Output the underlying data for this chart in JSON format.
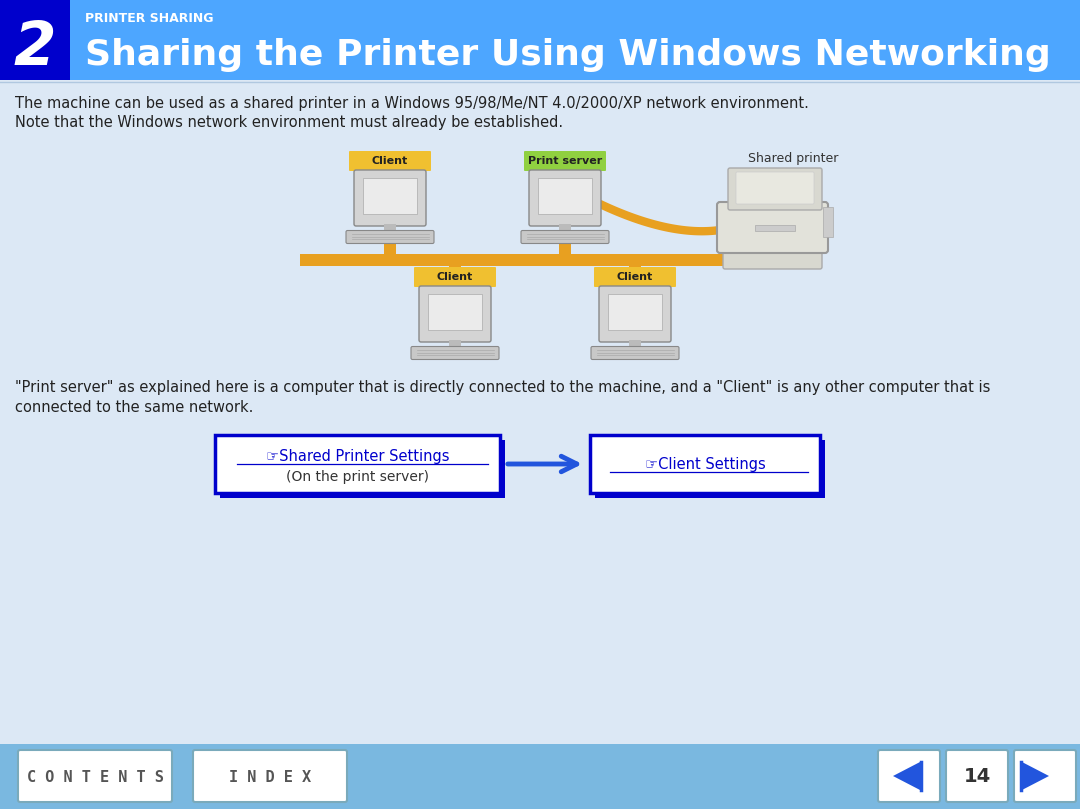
{
  "title_number": "2",
  "title_subtitle": "PRINTER SHARING",
  "title_main": "Sharing the Printer Using Windows Networking",
  "header_bg": "#4da6ff",
  "header_number_bg": "#0000cc",
  "body_bg": "#dce8f5",
  "footer_bg": "#7ab8e0",
  "body_text1": "The machine can be used as a shared printer in a Windows 95/98/Me/NT 4.0/2000/XP network environment.",
  "body_text2": "Note that the Windows network environment must already be established.",
  "desc_text1": "\"Print server\" as explained here is a computer that is directly connected to the machine, and a \"Client\" is any other computer that is",
  "desc_text2": "connected to the same network.",
  "box1_line1": "☞Shared Printer Settings",
  "box1_line2": "(On the print server)",
  "box2_line1": "☞Client Settings",
  "contents_label": "C O N T E N T S",
  "index_label": "I N D E X",
  "page_number": "14",
  "white": "#ffffff",
  "blue_dark": "#0000cc",
  "text_dark": "#222222",
  "orange": "#e8a020",
  "client_label_bg": "#f0c030",
  "server_label_bg": "#90d040"
}
